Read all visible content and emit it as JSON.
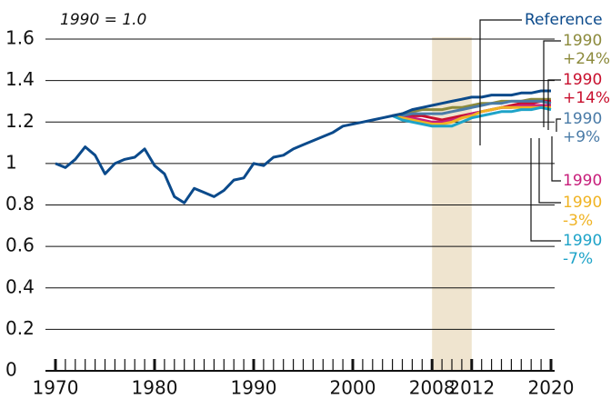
{
  "chart_data": {
    "type": "line",
    "annotation": "1990 = 1.0",
    "x": [
      1970,
      1971,
      1972,
      1973,
      1974,
      1975,
      1976,
      1977,
      1978,
      1979,
      1980,
      1981,
      1982,
      1983,
      1984,
      1985,
      1986,
      1987,
      1988,
      1989,
      1990,
      1991,
      1992,
      1993,
      1994,
      1995,
      1996,
      1997,
      1998,
      1999,
      2000,
      2001,
      2002,
      2003,
      2004,
      2005,
      2006,
      2007,
      2008,
      2009,
      2010,
      2011,
      2012,
      2013,
      2014,
      2015,
      2016,
      2017,
      2018,
      2019,
      2020
    ],
    "series": [
      {
        "name": "Reference",
        "color": "#0b4a8b",
        "values": [
          1.0,
          0.98,
          1.02,
          1.08,
          1.04,
          0.95,
          1.0,
          1.02,
          1.03,
          1.07,
          0.99,
          0.95,
          0.84,
          0.81,
          0.88,
          0.86,
          0.84,
          0.87,
          0.92,
          0.93,
          1.0,
          0.99,
          1.03,
          1.04,
          1.07,
          1.09,
          1.11,
          1.13,
          1.15,
          1.18,
          1.19,
          1.2,
          1.21,
          1.22,
          1.23,
          1.24,
          1.26,
          1.27,
          1.28,
          1.29,
          1.3,
          1.31,
          1.32,
          1.32,
          1.33,
          1.33,
          1.33,
          1.34,
          1.34,
          1.35,
          1.35
        ]
      },
      {
        "name": "1990\n+24%",
        "color": "#8c8a3c",
        "values": [
          null,
          null,
          null,
          null,
          null,
          null,
          null,
          null,
          null,
          null,
          null,
          null,
          null,
          null,
          null,
          null,
          null,
          null,
          null,
          null,
          null,
          null,
          null,
          null,
          null,
          null,
          null,
          null,
          null,
          null,
          null,
          null,
          null,
          null,
          1.23,
          1.24,
          1.25,
          1.26,
          1.26,
          1.26,
          1.27,
          1.27,
          1.28,
          1.29,
          1.29,
          1.3,
          1.3,
          1.3,
          1.31,
          1.31,
          1.31
        ]
      },
      {
        "name": "1990\n+14%",
        "color": "#c8102e",
        "values": [
          null,
          null,
          null,
          null,
          null,
          null,
          null,
          null,
          null,
          null,
          null,
          null,
          null,
          null,
          null,
          null,
          null,
          null,
          null,
          null,
          null,
          null,
          null,
          null,
          null,
          null,
          null,
          null,
          null,
          null,
          null,
          null,
          null,
          null,
          1.23,
          1.23,
          1.23,
          1.23,
          1.22,
          1.21,
          1.22,
          1.23,
          1.24,
          1.25,
          1.26,
          1.27,
          1.28,
          1.29,
          1.29,
          1.3,
          1.3
        ]
      },
      {
        "name": "1990\n+9%",
        "color": "#4a7ba7",
        "values": [
          null,
          null,
          null,
          null,
          null,
          null,
          null,
          null,
          null,
          null,
          null,
          null,
          null,
          null,
          null,
          null,
          null,
          null,
          null,
          null,
          null,
          null,
          null,
          null,
          null,
          null,
          null,
          null,
          null,
          null,
          null,
          null,
          null,
          null,
          1.23,
          1.23,
          1.24,
          1.24,
          1.24,
          1.24,
          1.25,
          1.26,
          1.27,
          1.28,
          1.29,
          1.29,
          1.3,
          1.3,
          1.3,
          1.3,
          1.29
        ]
      },
      {
        "name": "1990",
        "color": "#c81e7a",
        "values": [
          null,
          null,
          null,
          null,
          null,
          null,
          null,
          null,
          null,
          null,
          null,
          null,
          null,
          null,
          null,
          null,
          null,
          null,
          null,
          null,
          null,
          null,
          null,
          null,
          null,
          null,
          null,
          null,
          null,
          null,
          null,
          null,
          null,
          null,
          1.23,
          1.22,
          1.22,
          1.21,
          1.2,
          1.2,
          1.21,
          1.22,
          1.24,
          1.25,
          1.26,
          1.27,
          1.27,
          1.28,
          1.28,
          1.28,
          1.28
        ]
      },
      {
        "name": "1990\n-3%",
        "color": "#f0b323",
        "values": [
          null,
          null,
          null,
          null,
          null,
          null,
          null,
          null,
          null,
          null,
          null,
          null,
          null,
          null,
          null,
          null,
          null,
          null,
          null,
          null,
          null,
          null,
          null,
          null,
          null,
          null,
          null,
          null,
          null,
          null,
          null,
          null,
          null,
          null,
          1.23,
          1.22,
          1.21,
          1.2,
          1.19,
          1.19,
          1.2,
          1.22,
          1.23,
          1.25,
          1.26,
          1.27,
          1.27,
          1.27,
          1.27,
          1.27,
          1.27
        ]
      },
      {
        "name": "1990\n-7%",
        "color": "#1ea3c8",
        "values": [
          null,
          null,
          null,
          null,
          null,
          null,
          null,
          null,
          null,
          null,
          null,
          null,
          null,
          null,
          null,
          null,
          null,
          null,
          null,
          null,
          null,
          null,
          null,
          null,
          null,
          null,
          null,
          null,
          null,
          null,
          null,
          null,
          null,
          null,
          1.23,
          1.21,
          1.2,
          1.19,
          1.18,
          1.18,
          1.18,
          1.2,
          1.22,
          1.23,
          1.24,
          1.25,
          1.25,
          1.26,
          1.26,
          1.27,
          1.26
        ]
      }
    ],
    "shade": [
      2008,
      2012
    ],
    "shade_color": "#efe4cf",
    "xlim": [
      1970,
      2020
    ],
    "xticks": [
      1970,
      1980,
      1990,
      2000,
      2008,
      2012,
      2020
    ],
    "xminor_ticks": [
      1971,
      1972,
      1973,
      1974,
      1975,
      1976,
      1977,
      1978,
      1979,
      1981,
      1982,
      1983,
      1984,
      1985,
      1986,
      1987,
      1988,
      1989,
      1991,
      1992,
      1993,
      1994,
      1995,
      1996,
      1997,
      1998,
      1999,
      2001,
      2002,
      2003,
      2004,
      2005,
      2006,
      2007,
      2009,
      2010,
      2011,
      2013,
      2014,
      2015,
      2016,
      2017,
      2018,
      2019
    ],
    "ylim": [
      0,
      1.6
    ],
    "yticks": [
      0,
      0.2,
      0.4,
      0.6,
      0.8,
      1,
      1.2,
      1.4,
      1.6
    ],
    "grid": true
  }
}
